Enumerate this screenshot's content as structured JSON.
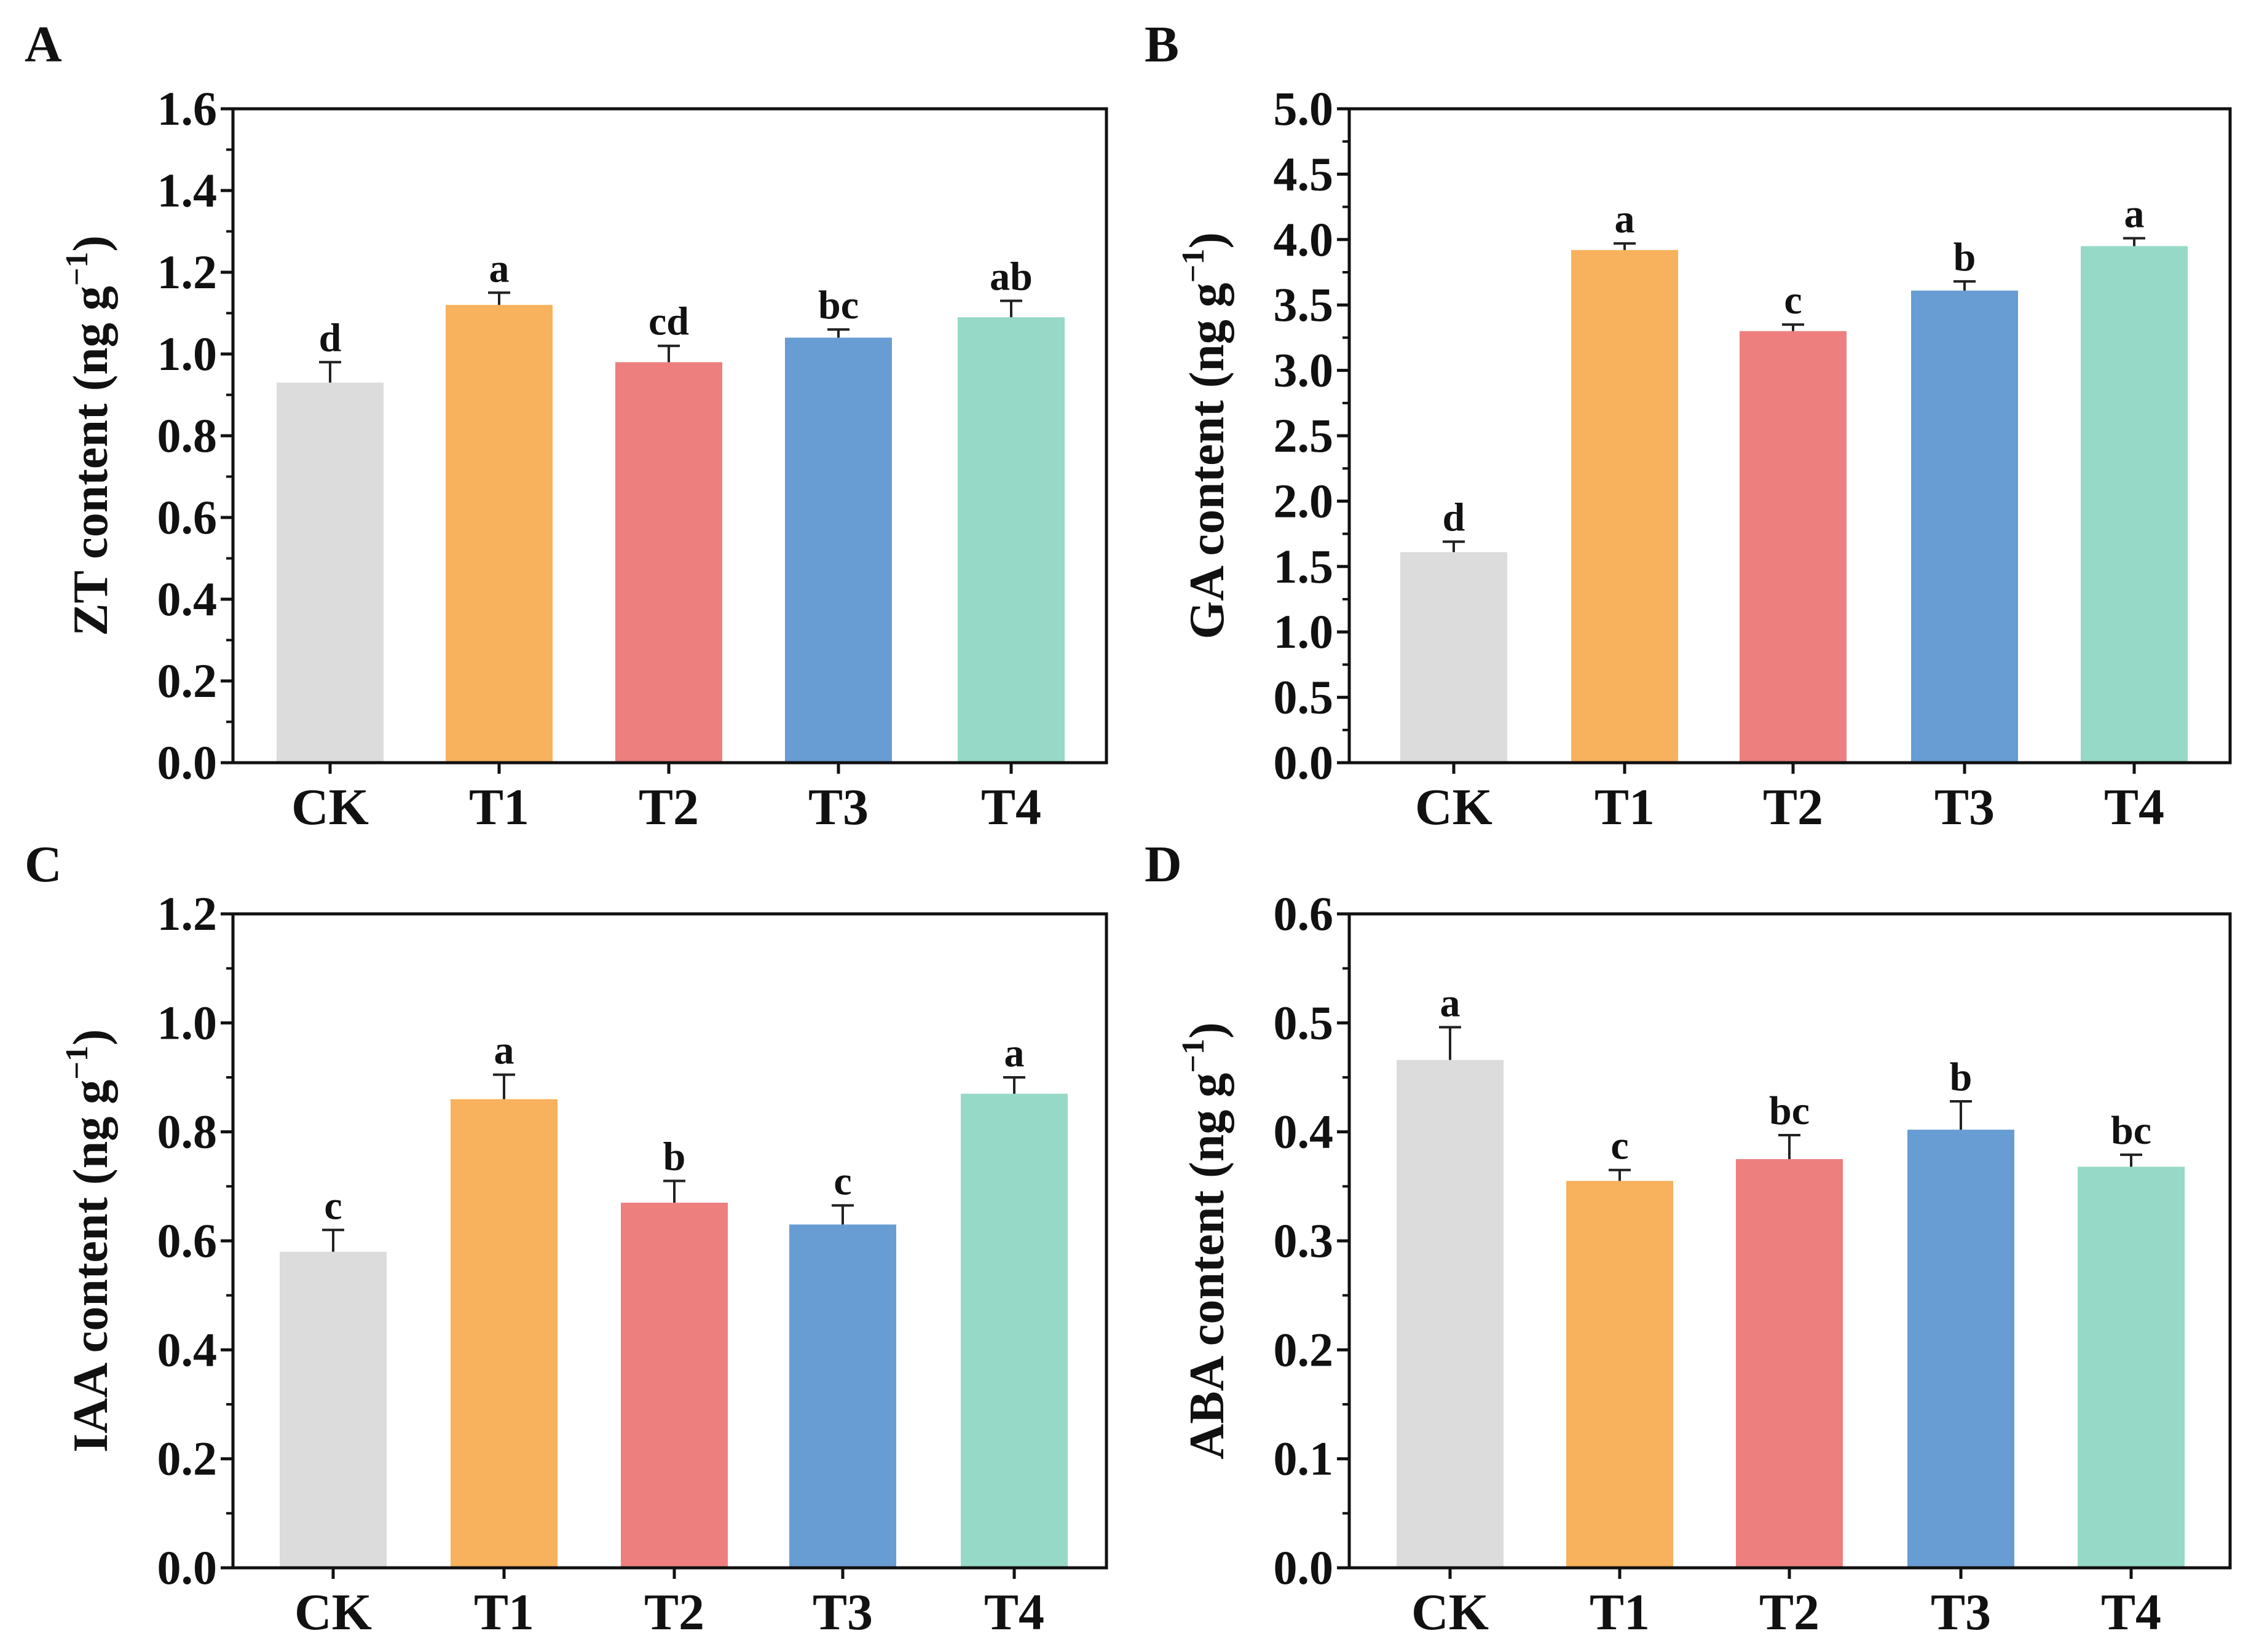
{
  "chart_data": [
    {
      "panel": "A",
      "type": "bar",
      "categories": [
        "CK",
        "T1",
        "T2",
        "T3",
        "T4"
      ],
      "values": [
        0.93,
        1.12,
        0.98,
        1.04,
        1.09
      ],
      "errors": [
        0.05,
        0.03,
        0.04,
        0.02,
        0.04
      ],
      "significance": [
        "d",
        "a",
        "cd",
        "bc",
        "ab"
      ],
      "ylabel": "ZT content (ng g",
      "ylabel_sup": "−1",
      "ylabel_close": ")",
      "ylim": [
        0,
        1.6
      ],
      "yticks": [
        "0.0",
        "0.2",
        "0.4",
        "0.6",
        "0.8",
        "1.0",
        "1.2",
        "1.4",
        "1.6"
      ],
      "colors": [
        "#dcdcdc",
        "#f8b15c",
        "#ee7f7f",
        "#679dd3",
        "#96d9c7"
      ]
    },
    {
      "panel": "B",
      "type": "bar",
      "categories": [
        "CK",
        "T1",
        "T2",
        "T3",
        "T4"
      ],
      "values": [
        1.61,
        3.92,
        3.3,
        3.61,
        3.95
      ],
      "errors": [
        0.08,
        0.05,
        0.05,
        0.07,
        0.06
      ],
      "significance": [
        "d",
        "a",
        "c",
        "b",
        "a"
      ],
      "ylabel": "GA content (ng g",
      "ylabel_sup": "−1",
      "ylabel_close": ")",
      "ylim": [
        0,
        5.0
      ],
      "yticks": [
        "0.0",
        "0.5",
        "1.0",
        "1.5",
        "2.0",
        "2.5",
        "3.0",
        "3.5",
        "4.0",
        "4.5",
        "5.0"
      ],
      "colors": [
        "#dcdcdc",
        "#f8b15c",
        "#ee7f7f",
        "#679dd3",
        "#96d9c7"
      ]
    },
    {
      "panel": "C",
      "type": "bar",
      "categories": [
        "CK",
        "T1",
        "T2",
        "T3",
        "T4"
      ],
      "values": [
        0.58,
        0.86,
        0.67,
        0.63,
        0.87
      ],
      "errors": [
        0.04,
        0.045,
        0.04,
        0.035,
        0.03
      ],
      "significance": [
        "c",
        "a",
        "b",
        "c",
        "a"
      ],
      "ylabel": "IAA content (ng g",
      "ylabel_sup": "−1",
      "ylabel_close": ")",
      "ylim": [
        0,
        1.2
      ],
      "yticks": [
        "0.0",
        "0.2",
        "0.4",
        "0.6",
        "0.8",
        "1.0",
        "1.2"
      ],
      "colors": [
        "#dcdcdc",
        "#f8b15c",
        "#ee7f7f",
        "#679dd3",
        "#96d9c7"
      ]
    },
    {
      "panel": "D",
      "type": "bar",
      "categories": [
        "CK",
        "T1",
        "T2",
        "T3",
        "T4"
      ],
      "values": [
        0.466,
        0.355,
        0.375,
        0.402,
        0.368
      ],
      "errors": [
        0.03,
        0.01,
        0.022,
        0.026,
        0.011
      ],
      "significance": [
        "a",
        "c",
        "bc",
        "b",
        "bc"
      ],
      "ylabel": "ABA content (ng g",
      "ylabel_sup": "−1",
      "ylabel_close": ")",
      "ylim": [
        0,
        0.6
      ],
      "yticks": [
        "0.0",
        "0.1",
        "0.2",
        "0.3",
        "0.4",
        "0.5",
        "0.6"
      ],
      "colors": [
        "#dcdcdc",
        "#f8b15c",
        "#ee7f7f",
        "#679dd3",
        "#96d9c7"
      ]
    }
  ]
}
